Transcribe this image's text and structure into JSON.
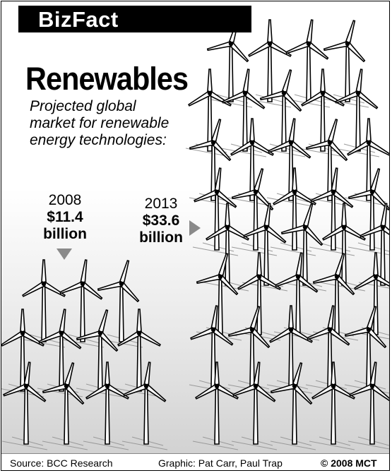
{
  "header": {
    "brand": "BizFact"
  },
  "title": "Renewables",
  "subtitle": "Projected global market for renewable energy technologies:",
  "chart_data": {
    "type": "bar",
    "title": "Renewables",
    "subtitle": "Projected global market for renewable energy technologies:",
    "categories": [
      "2008",
      "2013"
    ],
    "values": [
      11.4,
      33.6
    ],
    "unit": "billion",
    "value_labels": [
      "$11.4",
      "$33.6"
    ],
    "value_unit_label": "billion",
    "encoding": "pictogram (wind turbines)",
    "xlabel": "",
    "ylabel": ""
  },
  "labels": {
    "y2008": {
      "year": "2008",
      "amount": "$11.4",
      "unit": "billion"
    },
    "y2013": {
      "year": "2013",
      "amount": "$33.6",
      "unit": "billion"
    }
  },
  "footer": {
    "source": "Source: BCC Research",
    "graphic": "Graphic: Pat Carr, Paul Trap",
    "copyright": "© 2008 MCT"
  },
  "icons": {
    "turbine": "wind-turbine-icon",
    "pointer_down": "triangle-down-icon",
    "pointer_right": "triangle-right-icon"
  },
  "colors": {
    "banner": "#000000",
    "ink": "#000000",
    "pointer": "#8a8a8a"
  }
}
